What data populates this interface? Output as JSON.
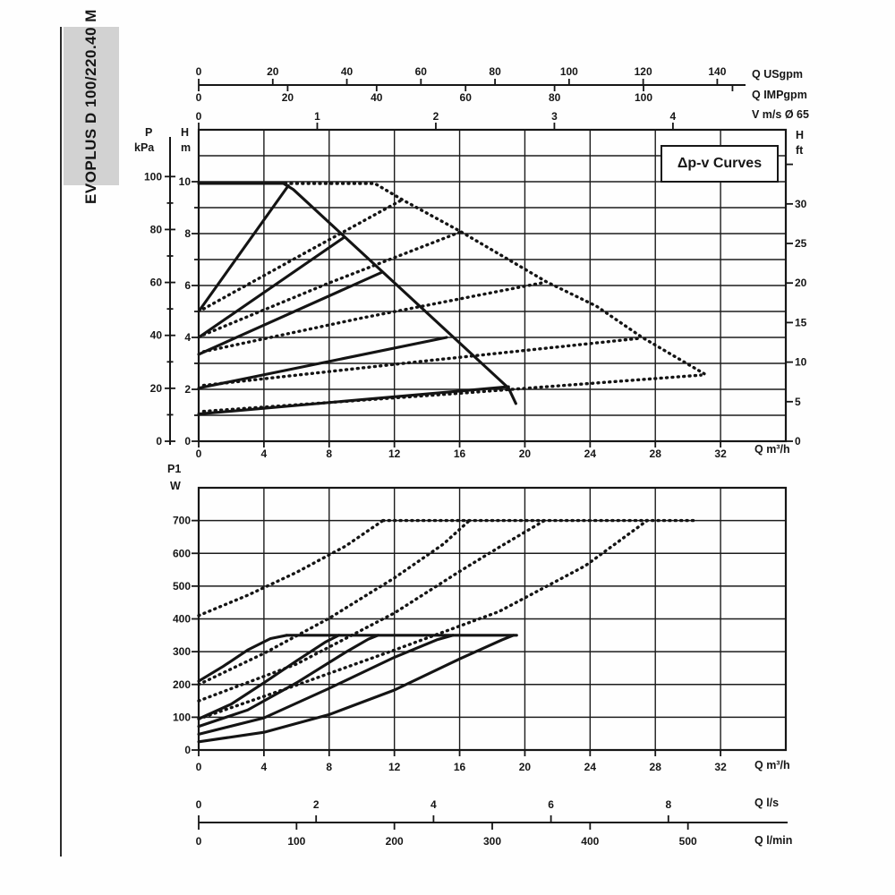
{
  "sidebar": {
    "model_label": "EVOPLUS D 100/220.40 M"
  },
  "colors": {
    "ink": "#161616",
    "sidebar_bg": "#d2d2d2",
    "paper": "#fefefe"
  },
  "chart_data": [
    {
      "id": "head-flow-chart",
      "type": "line",
      "annotation": "Δp-v Curves",
      "axes": {
        "q_m3h": {
          "label": "Q m³/h",
          "ticks": [
            0,
            4,
            8,
            12,
            16,
            20,
            24,
            28,
            32
          ],
          "range": [
            0,
            36
          ]
        },
        "q_usgpm": {
          "label": "Q USgpm",
          "ticks": [
            0,
            20,
            40,
            60,
            80,
            100,
            120,
            140
          ]
        },
        "q_impgpm": {
          "label": "Q IMPgpm",
          "ticks": [
            0,
            20,
            40,
            60,
            80,
            100
          ],
          "unlabeled_ticks": [
            120
          ]
        },
        "v_ms": {
          "label": "V m/s Ø 65",
          "ticks": [
            0,
            1,
            2,
            3,
            4
          ]
        },
        "h_m": {
          "label_top": "H",
          "label_unit": "m",
          "ticks": [
            0,
            2,
            4,
            6,
            8,
            10
          ],
          "minor_ticks": [
            1,
            3,
            5,
            7,
            9
          ],
          "range": [
            0,
            12
          ]
        },
        "p_kpa": {
          "label_top": "P",
          "label_unit": "kPa",
          "ticks": [
            0,
            20,
            40,
            60,
            80,
            100
          ],
          "minor_ticks": [
            10,
            30,
            50,
            70,
            90
          ]
        },
        "h_ft": {
          "label_top": "H",
          "label_unit": "ft",
          "ticks": [
            0,
            5,
            10,
            15,
            20,
            25,
            30
          ],
          "unlabeled_ticks": [
            35
          ]
        }
      },
      "series": [
        {
          "name": "max-curve-single",
          "style": "solid",
          "points": [
            [
              0,
              9.93
            ],
            [
              5.2,
              9.93
            ],
            [
              5.8,
              9.7
            ],
            [
              19.0,
              2.05
            ],
            [
              19.45,
              1.45
            ]
          ]
        },
        {
          "name": "dpv-single-set10",
          "style": "solid",
          "points": [
            [
              0,
              5.0
            ],
            [
              5.5,
              9.85
            ]
          ]
        },
        {
          "name": "dpv-single-set8",
          "style": "solid",
          "points": [
            [
              0,
              4.0
            ],
            [
              8.9,
              7.85
            ]
          ]
        },
        {
          "name": "dpv-single-set67",
          "style": "solid",
          "points": [
            [
              0,
              3.35
            ],
            [
              11.2,
              6.5
            ]
          ]
        },
        {
          "name": "dpv-single-set4",
          "style": "solid",
          "points": [
            [
              0,
              2.05
            ],
            [
              15.2,
              4.0
            ]
          ]
        },
        {
          "name": "dpv-single-set2",
          "style": "solid",
          "points": [
            [
              0,
              1.05
            ],
            [
              19.0,
              2.1
            ]
          ]
        },
        {
          "name": "max-curve-parallel",
          "style": "dotted",
          "points": [
            [
              5.3,
              9.93
            ],
            [
              10.8,
              9.93
            ],
            [
              12.5,
              9.3
            ],
            [
              16,
              8.1
            ],
            [
              21.3,
              6.15
            ],
            [
              24.4,
              5.2
            ],
            [
              27.2,
              4.0
            ],
            [
              31,
              2.6
            ]
          ]
        },
        {
          "name": "dpv-parallel-set10",
          "style": "dotted",
          "points": [
            [
              0.3,
              5.1
            ],
            [
              6.5,
              7.25
            ],
            [
              12.4,
              9.28
            ]
          ]
        },
        {
          "name": "dpv-parallel-set8",
          "style": "dotted",
          "points": [
            [
              0.3,
              4.1
            ],
            [
              8,
              6.1
            ],
            [
              16,
              8.05
            ]
          ]
        },
        {
          "name": "dpv-parallel-set67",
          "style": "dotted",
          "points": [
            [
              0.3,
              3.45
            ],
            [
              10,
              4.75
            ],
            [
              21.2,
              6.12
            ]
          ]
        },
        {
          "name": "dpv-parallel-set4",
          "style": "dotted",
          "points": [
            [
              0.3,
              2.15
            ],
            [
              14,
              3.1
            ],
            [
              27.1,
              3.97
            ]
          ]
        },
        {
          "name": "dpv-parallel-set2",
          "style": "dotted",
          "points": [
            [
              0.3,
              1.15
            ],
            [
              16,
              1.85
            ],
            [
              30.8,
              2.55
            ]
          ]
        }
      ]
    },
    {
      "id": "power-flow-chart",
      "type": "line",
      "axes": {
        "p1_w": {
          "label_top": "P1",
          "label_unit": "W",
          "ticks": [
            0,
            100,
            200,
            300,
            400,
            500,
            600,
            700
          ],
          "range": [
            0,
            800
          ]
        },
        "q_m3h": {
          "label": "Q m³/h",
          "ticks": [
            0,
            4,
            8,
            12,
            16,
            20,
            24,
            28,
            32
          ],
          "range": [
            0,
            36
          ]
        },
        "q_ls": {
          "label": "Q l/s",
          "ticks": [
            0,
            2,
            4,
            6,
            8
          ]
        },
        "q_lmin": {
          "label": "Q l/min",
          "ticks": [
            0,
            100,
            200,
            300,
            400,
            500
          ]
        }
      },
      "series": [
        {
          "name": "p1-max-single",
          "style": "solid",
          "points": [
            [
              5.4,
              350
            ],
            [
              19.5,
              350
            ]
          ]
        },
        {
          "name": "p1-single-set10",
          "style": "solid",
          "points": [
            [
              0,
              210
            ],
            [
              1.5,
              255
            ],
            [
              3,
              305
            ],
            [
              4.4,
              340
            ],
            [
              5.4,
              350
            ]
          ]
        },
        {
          "name": "p1-single-set8",
          "style": "solid",
          "points": [
            [
              0,
              95
            ],
            [
              2,
              140
            ],
            [
              4,
              205
            ],
            [
              6,
              272
            ],
            [
              7.8,
              330
            ],
            [
              8.6,
              350
            ]
          ]
        },
        {
          "name": "p1-single-set67",
          "style": "solid",
          "points": [
            [
              0,
              72
            ],
            [
              3,
              122
            ],
            [
              6,
              205
            ],
            [
              9,
              298
            ],
            [
              10.4,
              338
            ],
            [
              11,
              350
            ]
          ]
        },
        {
          "name": "p1-single-set4",
          "style": "solid",
          "points": [
            [
              0,
              48
            ],
            [
              4,
              98
            ],
            [
              8,
              188
            ],
            [
              12,
              283
            ],
            [
              14.6,
              336
            ],
            [
              15.6,
              350
            ]
          ]
        },
        {
          "name": "p1-single-set2",
          "style": "solid",
          "points": [
            [
              0,
              25
            ],
            [
              4,
              54
            ],
            [
              8,
              108
            ],
            [
              12,
              183
            ],
            [
              16,
              278
            ],
            [
              18.6,
              336
            ],
            [
              19.3,
              350
            ]
          ]
        },
        {
          "name": "p1-max-parallel",
          "style": "dotted",
          "points": [
            [
              11.3,
              700
            ],
            [
              30.5,
              700
            ]
          ]
        },
        {
          "name": "p1-parallel-set10",
          "style": "dotted",
          "points": [
            [
              0,
              410
            ],
            [
              3,
              472
            ],
            [
              6,
              542
            ],
            [
              9,
              622
            ],
            [
              11.3,
              700
            ]
          ]
        },
        {
          "name": "p1-parallel-set8",
          "style": "dotted",
          "points": [
            [
              0,
              200
            ],
            [
              4,
              295
            ],
            [
              8,
              402
            ],
            [
              12,
              525
            ],
            [
              15,
              628
            ],
            [
              16.6,
              700
            ]
          ]
        },
        {
          "name": "p1-parallel-set67",
          "style": "dotted",
          "points": [
            [
              0,
              150
            ],
            [
              6,
              262
            ],
            [
              12,
              418
            ],
            [
              16,
              545
            ],
            [
              18.4,
              618
            ],
            [
              21.2,
              700
            ]
          ]
        },
        {
          "name": "p1-parallel-set4",
          "style": "dotted",
          "points": [
            [
              0,
              95
            ],
            [
              6,
              198
            ],
            [
              12,
              305
            ],
            [
              18.4,
              422
            ],
            [
              23.7,
              562
            ],
            [
              27.5,
              700
            ]
          ]
        }
      ]
    }
  ]
}
